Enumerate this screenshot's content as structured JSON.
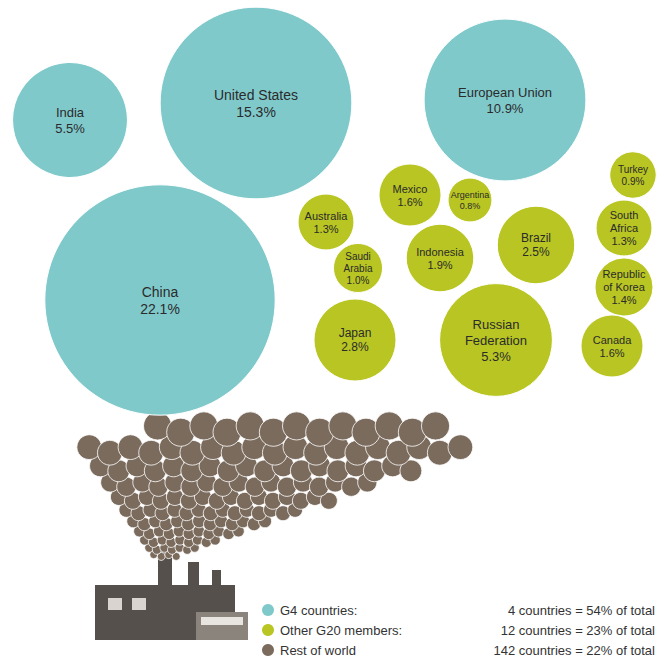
{
  "chart_data": {
    "type": "bubble",
    "legend": "bottom",
    "series": [
      {
        "name": "G4 countries:",
        "color": "#80c9cb",
        "summary": "4 countries = 54% of total",
        "count": 4,
        "categories": [
          "China",
          "United States",
          "European Union",
          "India"
        ],
        "values": [
          22.1,
          15.3,
          10.9,
          5.5
        ],
        "value_labels": [
          "22.1%",
          "15.3%",
          "10.9%",
          "5.5%"
        ]
      },
      {
        "name": "Other G20 members:",
        "color": "#b8c523",
        "summary": "12 countries = 23% of total",
        "count": 12,
        "categories": [
          "Russian Federation",
          "Japan",
          "Brazil",
          "Indonesia",
          "Mexico",
          "Canada",
          "Republic of Korea",
          "Australia",
          "South Africa",
          "Saudi Arabia",
          "Turkey",
          "Argentina"
        ],
        "values": [
          5.3,
          2.8,
          2.5,
          1.9,
          1.6,
          1.6,
          1.4,
          1.3,
          1.3,
          1.0,
          0.9,
          0.8
        ],
        "value_labels": [
          "5.3%",
          "2.8%",
          "2.5%",
          "1.9%",
          "1.6%",
          "1.6%",
          "1.4%",
          "1.3%",
          "1.3%",
          "1.0%",
          "0.9%",
          "0.8%"
        ]
      },
      {
        "name": "Rest of world",
        "color": "#7b6b5d",
        "summary": "142 countries = 22% of total",
        "count": 142
      }
    ]
  }
}
